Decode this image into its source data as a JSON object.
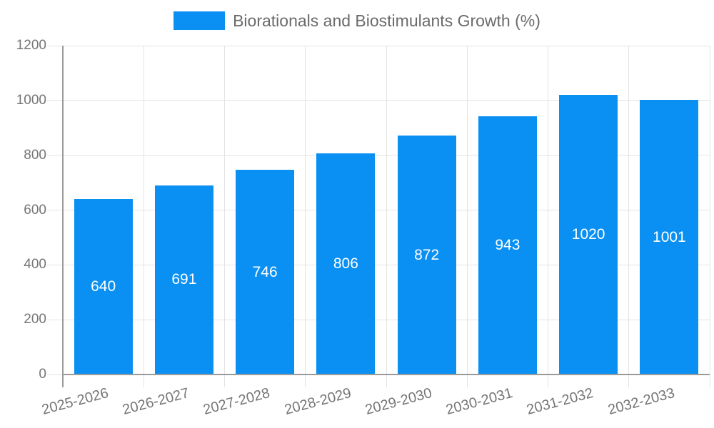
{
  "legend": {
    "label": "Biorationals and Biostimulants Growth (%)"
  },
  "chart_data": {
    "type": "bar",
    "title": "Biorationals and Biostimulants Growth (%)",
    "categories": [
      "2025-2026",
      "2026-2027",
      "2027-2028",
      "2028-2029",
      "2029-2030",
      "2030-2031",
      "2031-2032",
      "2032-2033"
    ],
    "values": [
      640,
      691,
      746,
      806,
      872,
      943,
      1020,
      1001
    ],
    "series_name": "Biorationals and Biostimulants Growth (%)",
    "xlabel": "",
    "ylabel": "",
    "ylim": [
      0,
      1200
    ],
    "yticks": [
      0,
      200,
      400,
      600,
      800,
      1000,
      1200
    ],
    "grid": true,
    "legend_position": "top",
    "value_label_position": "inside-center",
    "colors": {
      "bar": "#0a90f2",
      "grid_line": "#e3e3e3",
      "axis_line": "#9a9a9a",
      "tick_label": "#757575",
      "legend_text": "#6b6b6b",
      "value_label": "#ffffff",
      "background": "#ffffff"
    }
  }
}
